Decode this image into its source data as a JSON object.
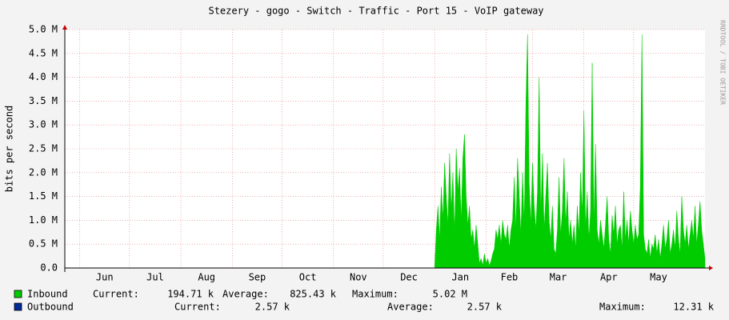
{
  "chart_data": {
    "type": "area",
    "title": "Stezery - gogo - Switch - Traffic - Port 15 - VoIP gateway",
    "ylabel": "bits per second",
    "watermark": "RRDTOOL / TOBI OETIKER",
    "xlim": [
      0,
      386
    ],
    "xticks": [
      {
        "value": 9,
        "label": "Jun"
      },
      {
        "value": 39,
        "label": "Jul"
      },
      {
        "value": 70,
        "label": "Aug"
      },
      {
        "value": 101,
        "label": "Sep"
      },
      {
        "value": 131,
        "label": "Oct"
      },
      {
        "value": 162,
        "label": "Nov"
      },
      {
        "value": 192,
        "label": "Dec"
      },
      {
        "value": 223,
        "label": "Jan"
      },
      {
        "value": 254,
        "label": "Feb"
      },
      {
        "value": 282,
        "label": "Mar"
      },
      {
        "value": 313,
        "label": "Apr"
      },
      {
        "value": 343,
        "label": "May"
      }
    ],
    "ylim": [
      0,
      5
    ],
    "yticks": [
      {
        "value": 0,
        "label": "0.0"
      },
      {
        "value": 0.5,
        "label": "0.5 M"
      },
      {
        "value": 1,
        "label": "1.0 M"
      },
      {
        "value": 1.5,
        "label": "1.5 M"
      },
      {
        "value": 2,
        "label": "2.0 M"
      },
      {
        "value": 2.5,
        "label": "2.5 M"
      },
      {
        "value": 3,
        "label": "3.0 M"
      },
      {
        "value": 3.5,
        "label": "3.5 M"
      },
      {
        "value": 4,
        "label": "4.0 M"
      },
      {
        "value": 4.5,
        "label": "4.5 M"
      },
      {
        "value": 5,
        "label": "5.0 M"
      }
    ],
    "grid": true,
    "legend_labels": [
      "Current:",
      "Average:",
      "Maximum:"
    ],
    "series": [
      {
        "name": "Inbound",
        "color": "#00cc00",
        "current": "194.71 k",
        "average": "825.43 k",
        "maximum": "5.02 M",
        "x": [
          0,
          222,
          223,
          224,
          225,
          226,
          227,
          228,
          229,
          230,
          231,
          232,
          233,
          234,
          235,
          236,
          237,
          238,
          239,
          240,
          241,
          242,
          243,
          244,
          245,
          246,
          247,
          248,
          249,
          250,
          251,
          252,
          253,
          254,
          255,
          256,
          257,
          258,
          259,
          260,
          261,
          262,
          263,
          264,
          265,
          266,
          267,
          268,
          269,
          270,
          271,
          272,
          273,
          274,
          275,
          276,
          277,
          278,
          279,
          280,
          281,
          282,
          283,
          284,
          285,
          286,
          287,
          288,
          289,
          290,
          291,
          292,
          293,
          294,
          295,
          296,
          297,
          298,
          299,
          300,
          301,
          302,
          303,
          304,
          305,
          306,
          307,
          308,
          309,
          310,
          311,
          312,
          313,
          314,
          315,
          316,
          317,
          318,
          319,
          320,
          321,
          322,
          323,
          324,
          325,
          326,
          327,
          328,
          329,
          330,
          331,
          332,
          333,
          334,
          335,
          336,
          337,
          338,
          339,
          340,
          341,
          342,
          343,
          344,
          345,
          346,
          347,
          348,
          349,
          350,
          351,
          352,
          353,
          354,
          355,
          356,
          357,
          358,
          359,
          360,
          361,
          362,
          363,
          364,
          365,
          366,
          367,
          368,
          369,
          370,
          371,
          372,
          373,
          374,
          375,
          376,
          377,
          378,
          379,
          380,
          381,
          382,
          383,
          384,
          385,
          386
        ],
        "values": [
          0,
          0,
          0,
          0.8,
          1.3,
          0.6,
          1.7,
          1.0,
          2.2,
          1.5,
          0.9,
          2.4,
          1.2,
          2.0,
          0.7,
          2.5,
          1.6,
          2.1,
          1.0,
          2.3,
          2.8,
          1.5,
          0.9,
          1.3,
          0.6,
          0.8,
          0.4,
          0.9,
          0.5,
          0.1,
          0.2,
          0.05,
          0.3,
          0.1,
          0.2,
          0.05,
          0.15,
          0.3,
          0.4,
          0.8,
          0.6,
          0.9,
          0.5,
          1.0,
          0.7,
          0.6,
          0.9,
          0.4,
          0.8,
          1.0,
          1.9,
          0.8,
          2.3,
          1.5,
          0.7,
          2.0,
          0.9,
          3.4,
          4.9,
          1.8,
          0.9,
          2.2,
          1.3,
          0.8,
          1.6,
          4.0,
          1.1,
          2.4,
          0.8,
          1.5,
          2.2,
          1.0,
          0.6,
          1.3,
          0.4,
          0.3,
          0.8,
          1.9,
          0.7,
          1.2,
          2.3,
          0.9,
          1.6,
          0.6,
          1.0,
          0.5,
          0.9,
          0.4,
          1.3,
          0.7,
          2.0,
          1.1,
          3.3,
          0.8,
          1.6,
          0.6,
          1.2,
          4.3,
          0.9,
          2.6,
          0.8,
          0.5,
          1.0,
          0.7,
          0.4,
          0.9,
          1.5,
          0.6,
          0.3,
          1.1,
          0.7,
          1.3,
          0.5,
          0.8,
          0.9,
          0.4,
          1.6,
          0.6,
          1.0,
          0.5,
          1.2,
          0.8,
          0.5,
          0.9,
          0.6,
          0.7,
          1.7,
          4.9,
          0.7,
          0.4,
          0.3,
          0.6,
          0.2,
          0.5,
          0.4,
          0.7,
          0.3,
          0.6,
          0.2,
          0.5,
          0.9,
          0.4,
          0.6,
          1.0,
          0.3,
          0.5,
          0.8,
          0.4,
          1.2,
          0.6,
          0.3,
          1.5,
          0.8,
          0.5,
          0.9,
          0.4,
          0.7,
          1.0,
          0.6,
          1.3,
          0.5,
          0.9,
          1.4,
          0.8,
          0.5,
          0.2
        ]
      },
      {
        "name": "Outbound",
        "color": "#002a97",
        "current": "2.57 k",
        "average": "2.57 k",
        "maximum": "12.31 k",
        "x": [
          0,
          386
        ],
        "values": [
          0.00257,
          0.00257
        ]
      }
    ]
  }
}
